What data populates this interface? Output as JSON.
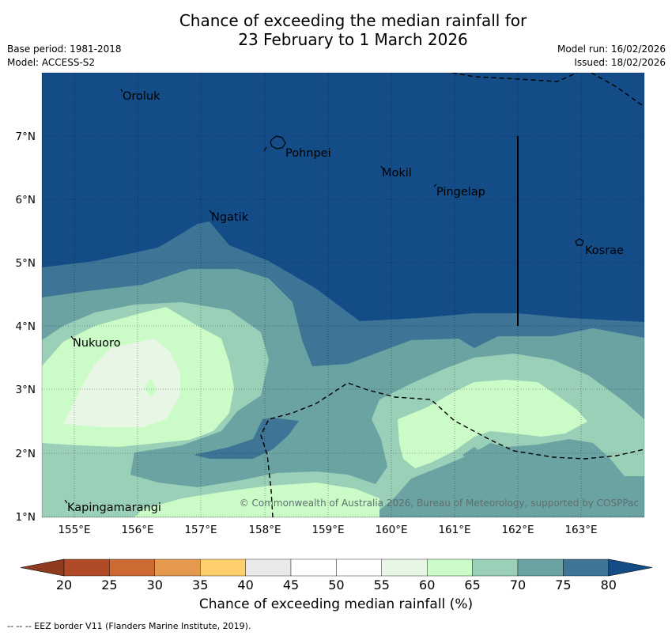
{
  "title": {
    "line1": "Chance of exceeding the median rainfall for",
    "line2": "23 February to 1 March 2026"
  },
  "meta": {
    "base_period": "Base period: 1981-2018",
    "model": "Model: ACCESS-S2",
    "model_run": "Model run: 16/02/2026",
    "issued": "Issued: 18/02/2026"
  },
  "axes": {
    "lon_ticks": [
      "155°E",
      "156°E",
      "157°E",
      "158°E",
      "159°E",
      "160°E",
      "161°E",
      "162°E",
      "163°E"
    ],
    "lat_ticks": [
      "7°N",
      "6°N",
      "5°N",
      "4°N",
      "3°N",
      "2°N",
      "1°N"
    ]
  },
  "places": [
    {
      "name": "Oroluk"
    },
    {
      "name": "Pohnpei"
    },
    {
      "name": "Mokil"
    },
    {
      "name": "Pingelap"
    },
    {
      "name": "Ngatik"
    },
    {
      "name": "Kosrae"
    },
    {
      "name": "Nukuoro"
    },
    {
      "name": "Kapingamarangi"
    }
  ],
  "copyright": "© Commonwealth of Australia 2026, Bureau of Meteorology, supported by COSPPac",
  "colorbar": {
    "ticks": [
      "20",
      "25",
      "30",
      "35",
      "40",
      "45",
      "50",
      "55",
      "60",
      "65",
      "70",
      "75",
      "80"
    ],
    "label": "Chance of exceeding median rainfall (%)",
    "colors": [
      "#b04a26",
      "#cd6a33",
      "#e5994e",
      "#fdd06d",
      "#e9e9e9",
      "#ffffff",
      "#ffffff",
      "#e8f6e6",
      "#cbfbc7",
      "#9ad0b7",
      "#6ba3a3",
      "#3e7597"
    ],
    "under_color": "#8e3b20",
    "over_color": "#144c88"
  },
  "legend_note": "--  --  -- EEZ border V11 (Flanders Marine Institute, 2019).",
  "colors": {
    "c80": "#144c88",
    "c75": "#3e7597",
    "c70": "#6ba3a3",
    "c65": "#9ad0b7",
    "c60": "#cbfbc7",
    "c55": "#e8f6e6"
  }
}
